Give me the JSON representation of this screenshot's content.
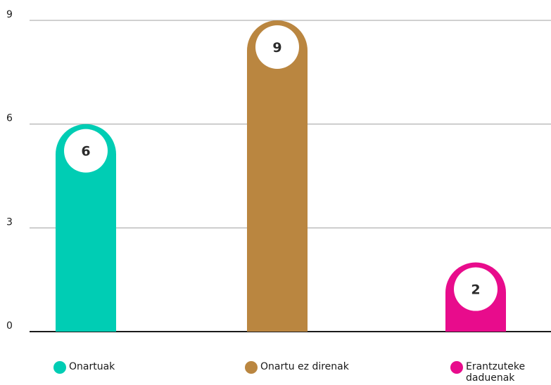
{
  "chart_data": {
    "type": "bar",
    "title": "",
    "xlabel": "",
    "ylabel": "",
    "ylim": [
      0,
      9
    ],
    "yticks": [
      0,
      3,
      6,
      9
    ],
    "grid": true,
    "legend_position": "bottom",
    "categories": [
      "Onartuak",
      "Onartu ez direnak",
      "Erantzuteke daduenak"
    ],
    "values": [
      6,
      9,
      2
    ],
    "colors": [
      "#00cdb4",
      "#ba8640",
      "#e80c8c"
    ],
    "value_labels": [
      "6",
      "9",
      "2"
    ],
    "legend": [
      {
        "label": "Onartuak",
        "color": "#00cdb4"
      },
      {
        "label": "Onartu ez direnak",
        "color": "#ba8640"
      },
      {
        "label": "Erantzuteke daduenak",
        "color": "#e80c8c"
      }
    ]
  }
}
